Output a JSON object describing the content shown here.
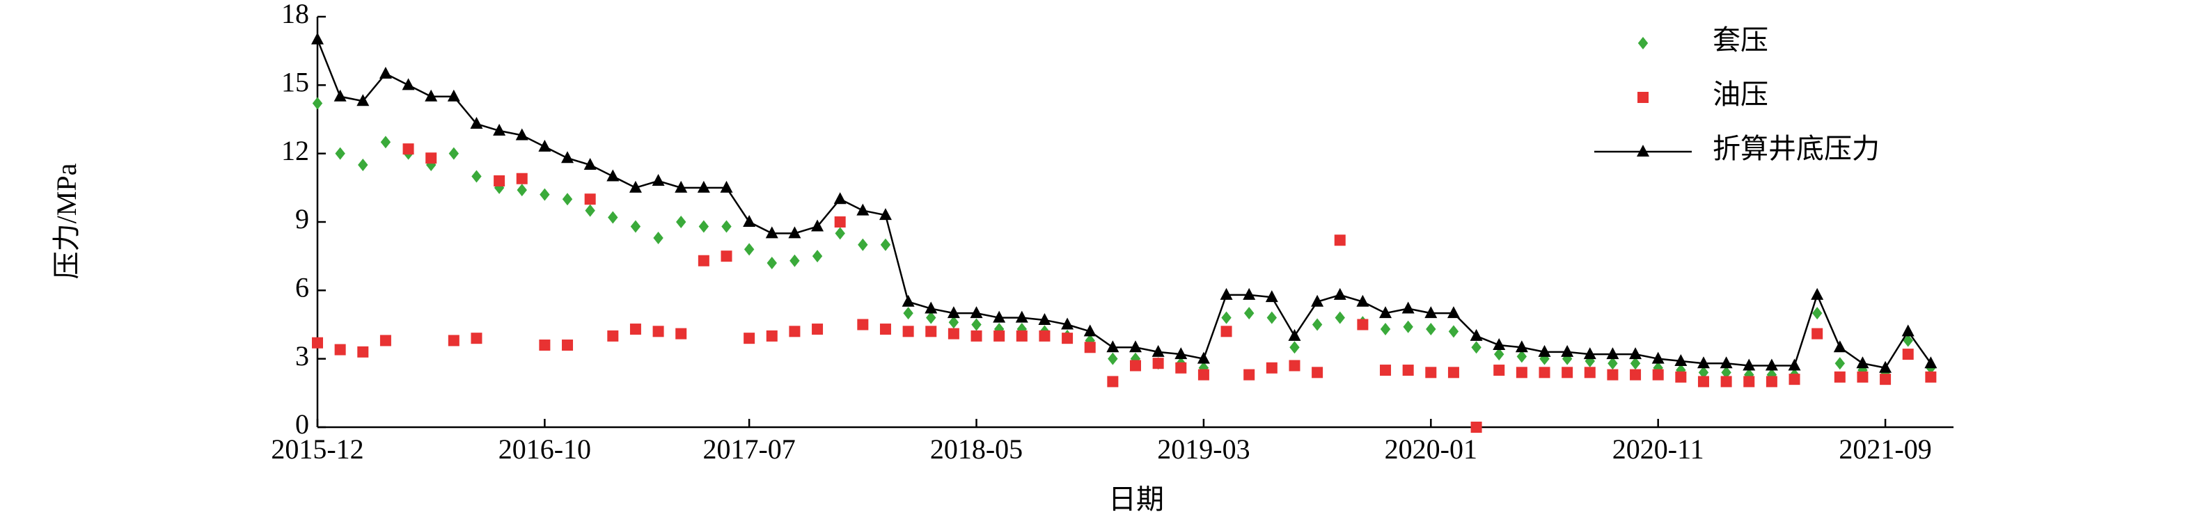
{
  "chart_data": {
    "type": "line",
    "x_label": "日期",
    "y_label": "压力/MPa",
    "x": [
      "2015-12",
      "2016-01",
      "2016-02",
      "2016-03",
      "2016-04",
      "2016-05",
      "2016-06",
      "2016-07",
      "2016-08",
      "2016-09",
      "2016-10",
      "2016-11",
      "2016-12",
      "2017-01",
      "2017-02",
      "2017-03",
      "2017-04",
      "2017-05",
      "2017-06",
      "2017-07",
      "2017-08",
      "2017-09",
      "2017-10",
      "2017-11",
      "2017-12",
      "2018-01",
      "2018-02",
      "2018-03",
      "2018-04",
      "2018-05",
      "2018-06",
      "2018-07",
      "2018-08",
      "2018-09",
      "2018-10",
      "2018-11",
      "2018-12",
      "2019-01",
      "2019-02",
      "2019-03",
      "2019-04",
      "2019-05",
      "2019-06",
      "2019-07",
      "2019-08",
      "2019-09",
      "2019-10",
      "2019-11",
      "2019-12",
      "2020-01",
      "2020-02",
      "2020-03",
      "2020-04",
      "2020-05",
      "2020-06",
      "2020-07",
      "2020-08",
      "2020-09",
      "2020-10",
      "2020-11",
      "2020-12",
      "2021-01",
      "2021-02",
      "2021-03",
      "2021-04",
      "2021-05",
      "2021-06",
      "2021-07",
      "2021-08",
      "2021-09",
      "2021-10",
      "2021-11"
    ],
    "xlim": [
      "2015-12",
      "2021-12"
    ],
    "xticks": [
      "2015-12",
      "2016-10",
      "2017-07",
      "2018-05",
      "2019-03",
      "2020-01",
      "2020-11",
      "2021-09"
    ],
    "ylim": [
      0,
      18
    ],
    "yticks": [
      0,
      3,
      6,
      9,
      12,
      15,
      18
    ],
    "legend": "upper right",
    "series": [
      {
        "name": "套压",
        "color": "#3aaa3a",
        "marker": "diamond",
        "line": false,
        "values": [
          14.2,
          12.0,
          11.5,
          12.5,
          12.0,
          11.5,
          12.0,
          11.0,
          10.5,
          10.4,
          10.2,
          10.0,
          9.5,
          9.2,
          8.8,
          8.3,
          9.0,
          8.8,
          8.8,
          7.8,
          7.2,
          7.3,
          7.5,
          8.5,
          8.0,
          8.0,
          5.0,
          4.8,
          4.6,
          4.5,
          4.3,
          4.3,
          4.2,
          4.0,
          3.8,
          3.0,
          3.0,
          2.8,
          2.8,
          2.6,
          4.8,
          5.0,
          4.8,
          3.5,
          4.5,
          4.8,
          4.6,
          4.3,
          4.4,
          4.3,
          4.2,
          3.5,
          3.2,
          3.1,
          3.0,
          3.0,
          2.9,
          2.8,
          2.8,
          2.6,
          2.5,
          2.4,
          2.4,
          2.3,
          2.3,
          2.3,
          5.0,
          2.8,
          2.5,
          2.4,
          3.8,
          2.6
        ]
      },
      {
        "name": "油压",
        "color": "#e83232",
        "marker": "square",
        "line": false,
        "values": [
          3.7,
          3.4,
          3.3,
          3.8,
          12.2,
          11.8,
          3.8,
          3.9,
          10.8,
          10.9,
          3.6,
          3.6,
          10.0,
          4.0,
          4.3,
          4.2,
          4.1,
          7.3,
          7.5,
          3.9,
          4.0,
          4.2,
          4.3,
          9.0,
          4.5,
          4.3,
          4.2,
          4.2,
          4.1,
          4.0,
          4.0,
          4.0,
          4.0,
          3.9,
          3.5,
          2.0,
          2.7,
          2.8,
          2.6,
          2.3,
          4.2,
          2.3,
          2.6,
          2.7,
          2.4,
          8.2,
          4.5,
          2.5,
          2.5,
          2.4,
          2.4,
          0,
          2.5,
          2.4,
          2.4,
          2.4,
          2.4,
          2.3,
          2.3,
          2.3,
          2.2,
          2.0,
          2.0,
          2.0,
          2.0,
          2.1,
          4.1,
          2.2,
          2.2,
          2.1,
          3.2,
          2.2
        ]
      },
      {
        "name": "折算井底压力",
        "color": "#000000",
        "marker": "triangle",
        "line": true,
        "values": [
          17.0,
          14.5,
          14.3,
          15.5,
          15.0,
          14.5,
          14.5,
          13.3,
          13.0,
          12.8,
          12.3,
          11.8,
          11.5,
          11.0,
          10.5,
          10.8,
          10.5,
          10.5,
          10.5,
          9.0,
          8.5,
          8.5,
          8.8,
          10.0,
          9.5,
          9.3,
          5.5,
          5.2,
          5.0,
          5.0,
          4.8,
          4.8,
          4.7,
          4.5,
          4.2,
          3.5,
          3.5,
          3.3,
          3.2,
          3.0,
          5.8,
          5.8,
          5.7,
          4.0,
          5.5,
          5.8,
          5.5,
          5.0,
          5.2,
          5.0,
          5.0,
          4.0,
          3.6,
          3.5,
          3.3,
          3.3,
          3.2,
          3.2,
          3.2,
          3.0,
          2.9,
          2.8,
          2.8,
          2.7,
          2.7,
          2.7,
          5.8,
          3.5,
          2.8,
          2.6,
          4.2,
          2.8
        ]
      }
    ]
  }
}
